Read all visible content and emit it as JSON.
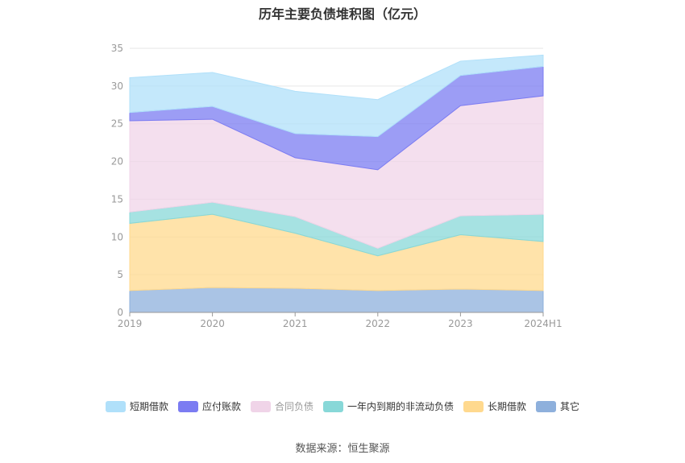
{
  "chart_data": {
    "type": "area",
    "stacked": true,
    "title": "历年主要负债堆积图（亿元）",
    "categories": [
      "2019",
      "2020",
      "2021",
      "2022",
      "2023",
      "2024H1"
    ],
    "ylim": [
      0,
      35
    ],
    "yticks": [
      0,
      5,
      10,
      15,
      20,
      25,
      30,
      35
    ],
    "grid": true,
    "legend_position": "bottom",
    "series": [
      {
        "name": "其它",
        "color": "#8eb0dc",
        "values": [
          2.9,
          3.3,
          3.2,
          2.9,
          3.1,
          2.9
        ]
      },
      {
        "name": "长期借款",
        "color": "#ffd98e",
        "values": [
          8.9,
          9.7,
          7.3,
          4.6,
          7.2,
          6.5
        ]
      },
      {
        "name": "一年内到期的非流动负债",
        "color": "#88d8d8",
        "values": [
          1.5,
          1.6,
          2.2,
          1.0,
          2.5,
          3.6
        ]
      },
      {
        "name": "合同负债",
        "color": "#f0d4e8",
        "values": [
          12.1,
          11.0,
          7.8,
          10.4,
          14.6,
          15.7
        ]
      },
      {
        "name": "应付账款",
        "color": "#7b7cf2",
        "values": [
          1.1,
          1.7,
          3.2,
          4.4,
          4.0,
          3.9
        ]
      },
      {
        "name": "短期借款",
        "color": "#b0e0fa",
        "values": [
          4.6,
          4.5,
          5.6,
          4.9,
          1.9,
          1.5
        ]
      }
    ]
  },
  "source": "数据来源：恒生聚源"
}
